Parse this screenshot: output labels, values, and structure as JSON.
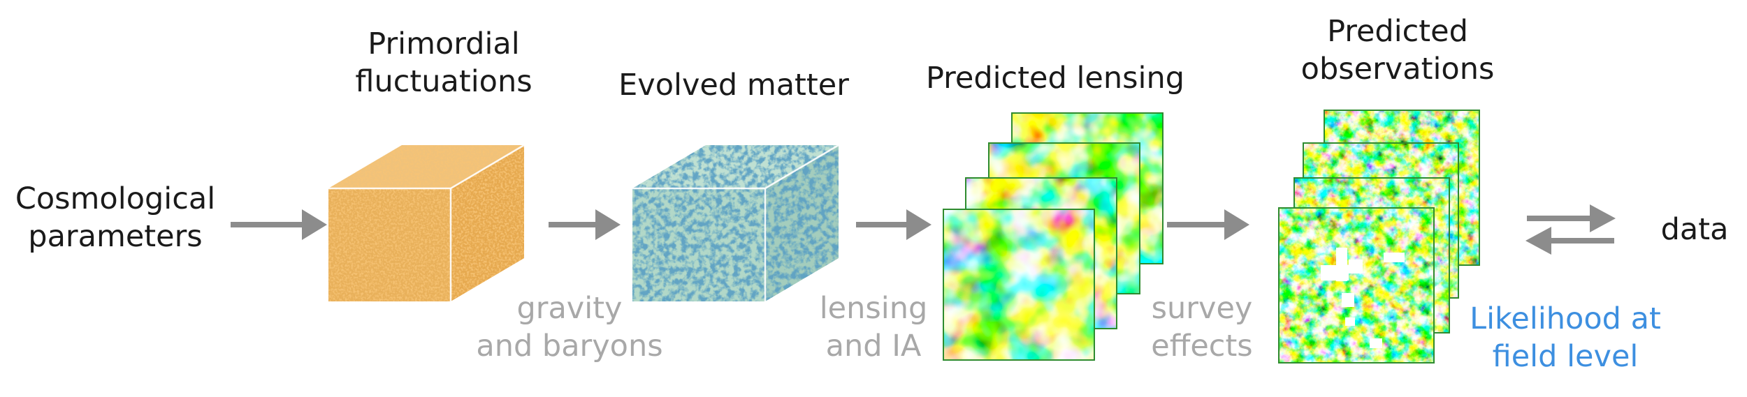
{
  "labels": {
    "cosmo": "Cosmological\nparameters",
    "primordial": "Primordial\nfluctuations",
    "evolved": "Evolved matter",
    "pred_lensing": "Predicted lensing",
    "pred_obs": "Predicted\nobservations",
    "data": "data"
  },
  "process": {
    "gravity": "gravity\nand baryons",
    "lensing_ia": "lensing\nand IA",
    "survey": "survey\neffects"
  },
  "likelihood": "Likelihood at\nfield level",
  "colors": {
    "text": "#1a1a1a",
    "process_text": "#a8a8a8",
    "likelihood_text": "#3d8fe0",
    "arrow": "#8c8c8c",
    "primordial_cube": "#e8b05a",
    "evolved_cube": "#a9d3c4",
    "map_frame": "#2e8b2e"
  },
  "icons": {
    "flow_arrow": "right-arrow-icon",
    "comparison": "double-arrow-icon"
  }
}
